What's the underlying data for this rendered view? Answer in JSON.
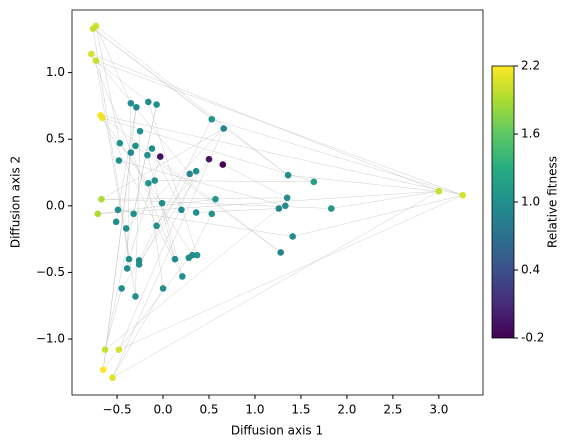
{
  "chart_data": {
    "type": "scatter",
    "xlabel": "Diffusion axis 1",
    "ylabel": "Diffusion axis 2",
    "colorbar_label": "Relative fitness",
    "xlim": [
      -0.99,
      3.48
    ],
    "ylim": [
      -1.42,
      1.47
    ],
    "xticks": [
      -0.5,
      {
        "value": 0,
        "label": "0.0"
      },
      0.5,
      {
        "value": 1,
        "label": "1.0"
      },
      1.5,
      {
        "value": 2,
        "label": "2.0"
      },
      2.5,
      {
        "value": 3,
        "label": "3.0"
      }
    ],
    "yticks": [
      {
        "value": -1,
        "label": "−1.0"
      },
      {
        "value": -0.5,
        "label": "−0.5"
      },
      {
        "value": 0,
        "label": "0.0"
      },
      0.5,
      {
        "value": 1,
        "label": "1.0"
      }
    ],
    "clim": [
      -0.2,
      2.2
    ],
    "cticks": [
      {
        "value": -0.2,
        "label": "-0.2"
      },
      0.4,
      {
        "value": 1,
        "label": "1.0"
      },
      1.6,
      2.2
    ],
    "colormap": "viridis",
    "edge_color": "#bbbbbb",
    "x": [
      -0.73,
      -0.76,
      -0.78,
      -0.73,
      -0.68,
      -0.66,
      -0.67,
      -0.71,
      -0.63,
      -0.48,
      -0.65,
      -0.55,
      3.0,
      3.26,
      -0.03,
      0.5,
      0.65,
      -0.35,
      -0.29,
      -0.16,
      -0.07,
      -0.47,
      -0.3,
      -0.25,
      -0.35,
      -0.12,
      -0.17,
      -0.48,
      0.53,
      0.66,
      0.29,
      0.36,
      -0.16,
      -0.09,
      -0.49,
      -0.32,
      -0.01,
      0.2,
      0.36,
      0.53,
      0.57,
      -0.51,
      -0.4,
      -0.07,
      1.36,
      1.64,
      1.35,
      1.26,
      1.33,
      1.83,
      1.41,
      1.28,
      -0.37,
      -0.26,
      -0.26,
      -0.39,
      0.13,
      0.28,
      0.32,
      0.37,
      0.21,
      0.0,
      -0.45,
      -0.3
    ],
    "y": [
      1.35,
      1.33,
      1.14,
      1.09,
      0.68,
      0.66,
      0.05,
      -0.06,
      -1.08,
      -1.08,
      -1.23,
      -1.29,
      0.11,
      0.08,
      0.37,
      0.35,
      0.31,
      0.77,
      0.74,
      0.78,
      0.76,
      0.47,
      0.45,
      0.56,
      0.4,
      0.43,
      0.38,
      0.34,
      0.65,
      0.58,
      0.24,
      0.26,
      0.17,
      0.19,
      -0.03,
      -0.06,
      0.02,
      -0.03,
      -0.05,
      -0.06,
      0.05,
      -0.12,
      -0.17,
      -0.15,
      0.23,
      0.18,
      0.06,
      -0.02,
      0.0,
      -0.02,
      -0.23,
      -0.35,
      -0.4,
      -0.41,
      -0.44,
      -0.47,
      -0.4,
      -0.39,
      -0.37,
      -0.37,
      -0.53,
      -0.62,
      -0.62,
      -0.68
    ],
    "fitness": [
      2.05,
      2.0,
      2.05,
      2.0,
      2.2,
      2.15,
      1.9,
      1.9,
      2.0,
      2.05,
      2.2,
      2.1,
      2.0,
      2.05,
      -0.1,
      -0.05,
      -0.2,
      1.0,
      0.95,
      0.95,
      1.0,
      1.0,
      1.0,
      1.0,
      0.95,
      1.0,
      1.0,
      1.0,
      1.05,
      0.9,
      0.9,
      0.95,
      1.05,
      1.05,
      1.0,
      1.0,
      1.0,
      0.95,
      1.0,
      1.05,
      1.1,
      1.0,
      1.0,
      1.0,
      1.0,
      1.15,
      0.95,
      0.9,
      0.95,
      1.05,
      0.95,
      0.9,
      1.0,
      0.95,
      1.0,
      0.95,
      0.95,
      0.95,
      0.95,
      1.05,
      1.0,
      1.0,
      1.0,
      1.0
    ],
    "edges": [
      [
        0,
        17
      ],
      [
        0,
        21
      ],
      [
        1,
        28
      ],
      [
        1,
        44
      ],
      [
        2,
        12
      ],
      [
        2,
        30
      ],
      [
        3,
        19
      ],
      [
        3,
        52
      ],
      [
        4,
        13
      ],
      [
        4,
        36
      ],
      [
        5,
        45
      ],
      [
        5,
        60
      ],
      [
        6,
        29
      ],
      [
        6,
        49
      ],
      [
        7,
        12
      ],
      [
        7,
        40
      ],
      [
        8,
        20
      ],
      [
        8,
        47
      ],
      [
        9,
        13
      ],
      [
        9,
        31
      ],
      [
        10,
        24
      ],
      [
        10,
        57
      ],
      [
        11,
        12
      ],
      [
        11,
        61
      ],
      [
        12,
        44
      ],
      [
        12,
        49
      ],
      [
        13,
        50
      ],
      [
        13,
        28
      ],
      [
        14,
        52
      ],
      [
        15,
        62
      ],
      [
        16,
        46
      ],
      [
        17,
        55
      ],
      [
        18,
        41
      ],
      [
        19,
        59
      ],
      [
        20,
        35
      ],
      [
        21,
        58
      ],
      [
        22,
        51
      ],
      [
        23,
        63
      ],
      [
        25,
        37
      ],
      [
        26,
        56
      ],
      [
        27,
        48
      ],
      [
        28,
        53
      ],
      [
        29,
        42
      ],
      [
        30,
        54
      ],
      [
        31,
        43
      ],
      [
        32,
        61
      ],
      [
        33,
        45
      ],
      [
        34,
        50
      ],
      [
        36,
        60
      ],
      [
        38,
        47
      ],
      [
        39,
        57
      ],
      [
        2,
        56
      ],
      [
        0,
        44
      ],
      [
        3,
        13
      ],
      [
        6,
        46
      ],
      [
        8,
        62
      ],
      [
        10,
        18
      ],
      [
        4,
        51
      ],
      [
        1,
        63
      ],
      [
        11,
        29
      ]
    ]
  }
}
